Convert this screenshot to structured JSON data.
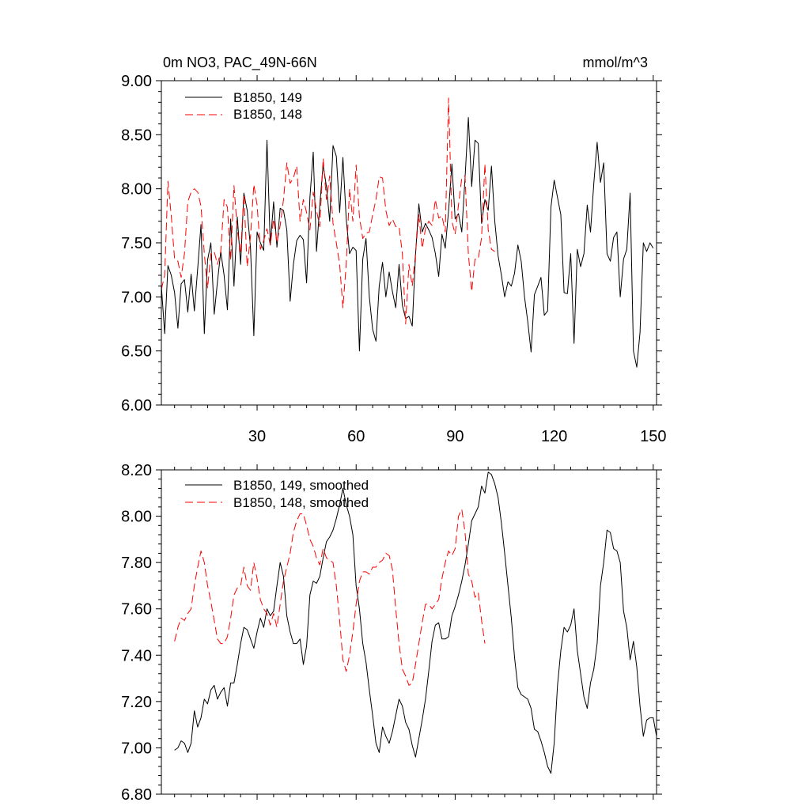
{
  "chart_data": [
    {
      "type": "line",
      "title": "0m NO3, PAC_49N-66N",
      "units": "mmol/m^3",
      "ylim": [
        6.0,
        9.0
      ],
      "xlim": [
        1,
        151
      ],
      "yticks": [
        "6.00",
        "6.50",
        "7.00",
        "7.50",
        "8.00",
        "8.50",
        "9.00"
      ],
      "xticks": [
        "30",
        "60",
        "90",
        "120",
        "150"
      ],
      "show_xtick_labels": true,
      "grid": false,
      "legend_position": "top-left",
      "series": [
        {
          "name": "B1850, 149",
          "color": "#000000",
          "dash": "solid",
          "x_start": 1,
          "values": [
            7.1,
            6.66,
            7.29,
            7.2,
            7.04,
            6.71,
            7.12,
            7.16,
            6.86,
            7.21,
            6.87,
            7.26,
            7.67,
            6.66,
            7.34,
            7.5,
            6.84,
            7.14,
            7.42,
            7.2,
            6.88,
            7.72,
            7.1,
            7.74,
            7.3,
            7.96,
            7.8,
            7.45,
            6.64,
            7.6,
            7.5,
            7.43,
            8.45,
            7.48,
            7.88,
            7.46,
            7.82,
            7.8,
            7.62,
            6.96,
            7.3,
            7.52,
            7.57,
            7.53,
            7.13,
            7.92,
            8.34,
            7.42,
            7.85,
            8.22,
            8.02,
            7.7,
            8.4,
            8.3,
            7.78,
            8.29,
            7.72,
            7.4,
            7.46,
            7.43,
            6.5,
            7.35,
            7.54,
            7.0,
            6.7,
            6.59,
            7.1,
            7.32,
            7.0,
            7.23,
            7.05,
            6.9,
            7.3,
            6.92,
            6.8,
            6.82,
            6.73,
            7.39,
            7.86,
            7.6,
            7.68,
            7.62,
            7.55,
            7.4,
            7.19,
            7.58,
            7.45,
            7.8,
            8.23,
            7.72,
            7.77,
            7.6,
            8.1,
            8.66,
            8.02,
            8.45,
            8.42,
            7.68,
            7.9,
            7.8,
            8.21,
            7.7,
            7.38,
            7.2,
            7.0,
            7.14,
            7.1,
            7.22,
            7.48,
            7.33,
            7.0,
            6.77,
            6.49,
            7.02,
            7.1,
            7.18,
            6.83,
            6.87,
            7.83,
            8.08,
            7.92,
            7.76,
            7.04,
            7.03,
            7.4,
            6.57,
            7.44,
            7.28,
            7.4,
            7.85,
            7.6,
            8.05,
            8.43,
            8.06,
            8.24,
            7.4,
            7.33,
            7.55,
            7.6,
            7.0,
            7.35,
            7.44,
            7.96,
            6.5,
            6.35,
            6.67,
            7.5,
            7.42,
            7.5,
            7.45
          ]
        },
        {
          "name": "B1850, 148",
          "color": "#ff0000",
          "dash": "dashed",
          "x_start": 1,
          "values": [
            7.07,
            7.2,
            8.07,
            7.75,
            7.35,
            7.33,
            7.18,
            7.4,
            7.88,
            7.97,
            8.0,
            7.97,
            7.84,
            7.4,
            7.08,
            7.4,
            7.42,
            7.3,
            7.42,
            7.9,
            7.83,
            7.34,
            8.03,
            7.62,
            7.4,
            7.95,
            7.28,
            7.56,
            8.04,
            7.85,
            7.44,
            7.52,
            7.63,
            7.48,
            7.72,
            7.5,
            7.66,
            7.9,
            8.24,
            8.05,
            8.1,
            8.21,
            7.7,
            7.9,
            7.78,
            7.62,
            7.97,
            7.8,
            7.65,
            8.28,
            7.9,
            8.12,
            7.68,
            7.5,
            7.3,
            6.9,
            7.3,
            8.0,
            7.7,
            8.22,
            7.74,
            7.54,
            7.59,
            7.6,
            7.76,
            7.9,
            8.11,
            8.1,
            7.8,
            7.66,
            7.72,
            7.65,
            7.65,
            7.4,
            6.75,
            7.3,
            7.1,
            7.4,
            7.76,
            7.45,
            7.63,
            7.7,
            7.66,
            7.9,
            7.73,
            7.75,
            7.6,
            8.84,
            7.7,
            7.58,
            7.85,
            8.1,
            8.12,
            7.4,
            7.05,
            7.35,
            7.35,
            7.55,
            8.23,
            7.62,
            7.44,
            7.42
          ]
        }
      ]
    },
    {
      "type": "line",
      "title": "",
      "units": "",
      "ylim": [
        6.8,
        8.2
      ],
      "xlim": [
        1,
        151
      ],
      "yticks": [
        "6.80",
        "7.00",
        "7.20",
        "7.40",
        "7.60",
        "7.80",
        "8.00",
        "8.20"
      ],
      "xticks": [
        "30",
        "60",
        "90",
        "120",
        "150"
      ],
      "show_xtick_labels": false,
      "grid": false,
      "legend_position": "top-left",
      "series": [
        {
          "name": "B1850, 149, smoothed",
          "color": "#000000",
          "dash": "solid",
          "x_start": 5,
          "values": [
            6.99,
            7.0,
            7.03,
            7.02,
            6.98,
            7.02,
            7.16,
            7.09,
            7.13,
            7.21,
            7.19,
            7.25,
            7.27,
            7.21,
            7.24,
            7.26,
            7.18,
            7.28,
            7.28,
            7.36,
            7.45,
            7.52,
            7.51,
            7.47,
            7.43,
            7.5,
            7.56,
            7.52,
            7.6,
            7.57,
            7.59,
            7.7,
            7.8,
            7.74,
            7.57,
            7.5,
            7.45,
            7.45,
            7.47,
            7.36,
            7.44,
            7.66,
            7.72,
            7.71,
            7.74,
            7.82,
            7.89,
            7.91,
            7.94,
            7.99,
            8.05,
            8.12,
            8.05,
            8.0,
            7.92,
            7.7,
            7.6,
            7.45,
            7.37,
            7.25,
            7.14,
            7.02,
            6.98,
            7.09,
            7.05,
            7.02,
            7.07,
            7.14,
            7.21,
            7.18,
            7.11,
            7.08,
            7.01,
            6.96,
            7.04,
            7.12,
            7.21,
            7.33,
            7.46,
            7.53,
            7.54,
            7.47,
            7.47,
            7.48,
            7.57,
            7.61,
            7.66,
            7.72,
            7.79,
            7.88,
            7.98,
            8.01,
            8.04,
            8.13,
            8.1,
            8.19,
            8.18,
            8.14,
            8.08,
            7.97,
            7.84,
            7.7,
            7.56,
            7.39,
            7.26,
            7.23,
            7.22,
            7.21,
            7.17,
            7.08,
            7.07,
            7.03,
            6.98,
            6.92,
            6.89,
            7.02,
            7.27,
            7.42,
            7.52,
            7.5,
            7.53,
            7.6,
            7.42,
            7.32,
            7.22,
            7.17,
            7.28,
            7.34,
            7.45,
            7.7,
            7.8,
            7.94,
            7.93,
            7.86,
            7.85,
            7.8,
            7.59,
            7.52,
            7.38,
            7.46,
            7.35,
            7.18,
            7.05,
            7.12,
            7.13,
            7.13,
            7.05
          ]
        },
        {
          "name": "B1850, 148, smoothed",
          "color": "#ff0000",
          "dash": "dashed",
          "x_start": 5,
          "values": [
            7.46,
            7.52,
            7.56,
            7.55,
            7.58,
            7.6,
            7.7,
            7.78,
            7.85,
            7.8,
            7.7,
            7.63,
            7.55,
            7.47,
            7.45,
            7.45,
            7.48,
            7.56,
            7.66,
            7.69,
            7.7,
            7.78,
            7.7,
            7.68,
            7.8,
            7.73,
            7.64,
            7.6,
            7.58,
            7.53,
            7.58,
            7.52,
            7.62,
            7.72,
            7.78,
            7.84,
            7.93,
            7.98,
            8.01,
            8.01,
            7.96,
            7.9,
            7.87,
            7.82,
            7.79,
            7.86,
            7.82,
            7.81,
            7.8,
            7.7,
            7.55,
            7.38,
            7.33,
            7.4,
            7.5,
            7.62,
            7.72,
            7.76,
            7.76,
            7.75,
            7.78,
            7.78,
            7.8,
            7.81,
            7.84,
            7.83,
            7.77,
            7.6,
            7.45,
            7.34,
            7.31,
            7.27,
            7.28,
            7.36,
            7.45,
            7.54,
            7.62,
            7.62,
            7.6,
            7.62,
            7.64,
            7.73,
            7.8,
            7.85,
            7.83,
            7.86,
            8.0,
            8.03,
            7.93,
            7.75,
            7.72,
            7.65,
            7.67,
            7.55,
            7.45
          ]
        }
      ]
    }
  ]
}
